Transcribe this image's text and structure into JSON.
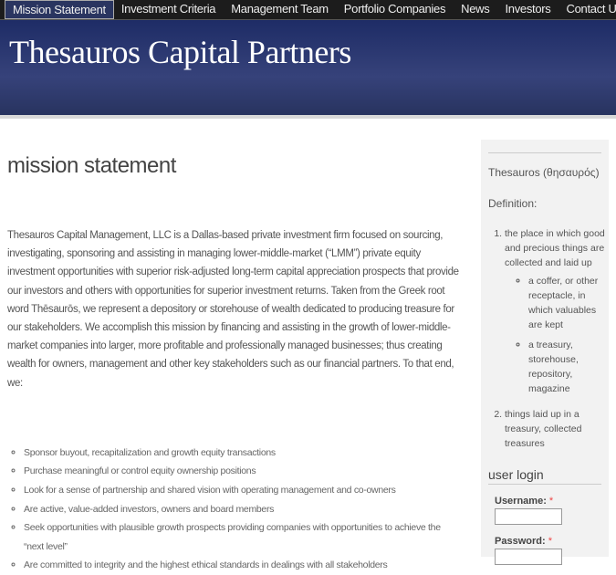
{
  "nav": {
    "items": [
      "Mission Statement",
      "Investment Criteria",
      "Management Team",
      "Portfolio Companies",
      "News",
      "Investors",
      "Contact Us"
    ],
    "active": 0
  },
  "header": {
    "title": "Thesauros Capital Partners"
  },
  "main": {
    "heading": "mission statement",
    "paragraph": "Thesauros Capital Management, LLC is a Dallas-based private investment firm focused on sourcing, investigating, sponsoring and assisting in managing lower-middle-market (“LMM”) private equity investment opportunities with superior risk-adjusted long-term capital appreciation prospects that provide our investors and others with opportunities for superior investment returns. Taken from the Greek root word Thēsaurōs, we represent a depository or storehouse of wealth dedicated to producing treasure for our stakeholders. We accomplish this mission by financing and assisting in the growth of lower-middle-market companies into larger, more profitable and professionally managed businesses; thus creating wealth for owners, management and other key stakeholders such as our financial partners. To that end, we:",
    "list": [
      "Sponsor buyout, recapitalization and growth equity transactions",
      "Purchase meaningful or control equity ownership positions",
      "Look for a sense of partnership and shared vision with operating management and co-owners",
      "Are active, value-added investors, owners and board members",
      "Seek opportunities with plausible growth prospects providing companies with opportunities to achieve the “next level”",
      "Are committed to integrity and the highest ethical standards in dealings with all stakeholders"
    ]
  },
  "sidebar": {
    "word": "Thesauros (θησαυρός)",
    "definition_label": "Definition:",
    "definitions": [
      {
        "text": "the place in which good and precious things are collected and laid up",
        "sub": [
          "a coffer, or other receptacle, in which valuables are kept",
          "a treasury, storehouse, repository, magazine"
        ]
      },
      {
        "text": "things laid up in a treasury, collected treasures",
        "sub": []
      }
    ],
    "login": {
      "title": "user login",
      "username": "Username:",
      "password": "Password:",
      "required": "*"
    }
  }
}
